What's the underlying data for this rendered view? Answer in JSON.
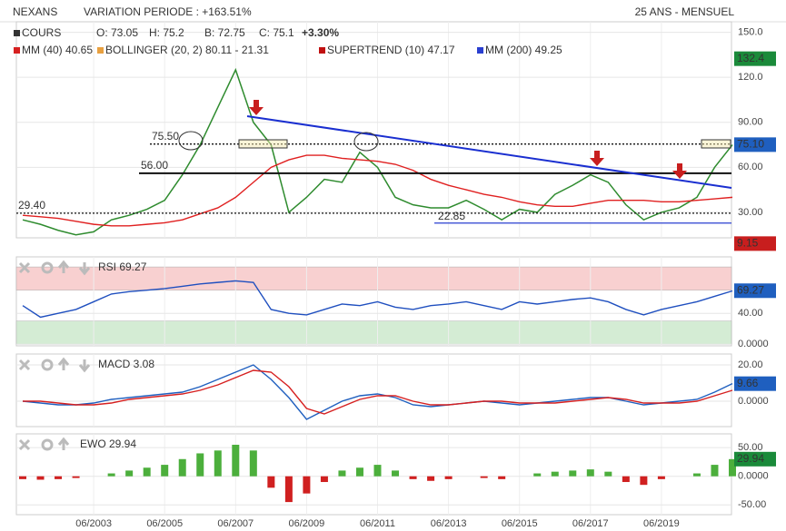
{
  "chart_data": [
    {
      "type": "line",
      "title": "NEXANS",
      "subtitle": "VARIATION PERIODE : +163.51%",
      "period": "25 ANS - MENSUEL",
      "legend": [
        {
          "label": "COURS",
          "color": "#333333"
        },
        {
          "label": "O: 73.05",
          "color": "#333333"
        },
        {
          "label": "H: 75.2",
          "color": "#333333"
        },
        {
          "label": "B: 72.75",
          "color": "#333333"
        },
        {
          "label": "C: 75.1",
          "color": "#333333"
        },
        {
          "label": "+3.30%",
          "color": "#1a9a1a"
        },
        {
          "label": "MM (40) 40.65",
          "color": "#d62020"
        },
        {
          "label": "BOLLINGER (20, 2) 80.11 - 21.31",
          "color": "#e8a040"
        },
        {
          "label": "SUPERTREND (10) 47.17",
          "color": "#c01010"
        },
        {
          "label": "MM (200) 49.25",
          "color": "#2a3fd0"
        }
      ],
      "x": [
        "06/2001",
        "12/2001",
        "06/2002",
        "12/2002",
        "06/2003",
        "12/2003",
        "06/2004",
        "12/2004",
        "06/2005",
        "12/2005",
        "06/2006",
        "12/2006",
        "06/2007",
        "12/2007",
        "06/2008",
        "12/2008",
        "06/2009",
        "12/2009",
        "06/2010",
        "12/2010",
        "06/2011",
        "12/2011",
        "06/2012",
        "12/2012",
        "06/2013",
        "12/2013",
        "06/2014",
        "12/2014",
        "06/2015",
        "12/2015",
        "06/2016",
        "12/2016",
        "06/2017",
        "12/2017",
        "06/2018",
        "12/2018",
        "06/2019",
        "12/2019",
        "06/2020",
        "12/2020",
        "06/2021"
      ],
      "xticks": [
        "06/2003",
        "06/2005",
        "06/2007",
        "06/2009",
        "06/2011",
        "06/2013",
        "06/2015",
        "06/2017",
        "06/2019"
      ],
      "series": [
        {
          "name": "COURS",
          "color": "#2e8b2e",
          "values": [
            25,
            22,
            18,
            15,
            17,
            25,
            28,
            32,
            38,
            55,
            75,
            100,
            125,
            90,
            75,
            30,
            40,
            52,
            50,
            70,
            60,
            40,
            35,
            33,
            33,
            38,
            32,
            25,
            32,
            30,
            42,
            48,
            55,
            50,
            35,
            25,
            30,
            33,
            40,
            60,
            75
          ]
        },
        {
          "name": "MM (40)",
          "color": "#e02020",
          "values": [
            28,
            27,
            26,
            24,
            22,
            21,
            21,
            22,
            23,
            25,
            29,
            33,
            40,
            50,
            60,
            65,
            68,
            68,
            66,
            65,
            64,
            62,
            58,
            52,
            48,
            45,
            42,
            40,
            37,
            35,
            34,
            34,
            36,
            38,
            38,
            38,
            37,
            37,
            38,
            39,
            40
          ]
        }
      ],
      "ylim": [
        13,
        157
      ],
      "yticks": [
        {
          "value": 30,
          "label": "30.00"
        },
        {
          "value": 60,
          "label": "60.00"
        },
        {
          "value": 90,
          "label": "90.00"
        },
        {
          "value": 120,
          "label": "120.0"
        },
        {
          "value": 150,
          "label": "150.0"
        }
      ],
      "annotations": [
        {
          "value": 75.5,
          "label": "75.50"
        },
        {
          "value": 56,
          "label": "56.00"
        },
        {
          "value": 29.4,
          "label": "29.40"
        },
        {
          "value": 22.85,
          "label": "22.85"
        }
      ],
      "value_boxes": [
        {
          "value": 132.4,
          "label": "132.4",
          "color": "#1a8a3a"
        },
        {
          "value": 75.1,
          "label": "75.10",
          "color": "#1f5fbf"
        },
        {
          "value": 9.15,
          "label": "9.15",
          "color": "#c81e1e"
        }
      ]
    },
    {
      "type": "line",
      "title": "RSI 69.27",
      "series": [
        {
          "name": "RSI",
          "color": "#1f4fbf",
          "values": [
            50,
            35,
            40,
            45,
            55,
            65,
            68,
            70,
            72,
            75,
            78,
            80,
            82,
            80,
            45,
            40,
            38,
            45,
            52,
            50,
            55,
            48,
            45,
            50,
            52,
            55,
            50,
            45,
            55,
            52,
            55,
            58,
            60,
            55,
            45,
            38,
            45,
            50,
            55,
            62,
            69
          ]
        }
      ],
      "ylim": [
        -2,
        113
      ],
      "yticks": [
        {
          "value": 0,
          "label": "0.0000"
        },
        {
          "value": 40,
          "label": "40.00"
        }
      ],
      "zones": [
        {
          "from": 70,
          "to": 100,
          "color": "#f8d0d0"
        },
        {
          "from": 0,
          "to": 30,
          "color": "#d4ecd4"
        }
      ],
      "value_boxes": [
        {
          "value": 69.27,
          "label": "69.27",
          "color": "#1f5fbf"
        }
      ]
    },
    {
      "type": "line",
      "title": "MACD 3.08",
      "series": [
        {
          "name": "MACD",
          "color": "#1f5fbf",
          "values": [
            0,
            -1,
            -2,
            -2,
            -1,
            1,
            2,
            3,
            4,
            5,
            8,
            12,
            16,
            20,
            12,
            2,
            -10,
            -5,
            0,
            3,
            4,
            2,
            -2,
            -3,
            -2,
            -1,
            0,
            -1,
            -2,
            -1,
            0,
            1,
            2,
            2,
            0,
            -2,
            -1,
            0,
            1,
            5,
            9.66
          ]
        },
        {
          "name": "SIGNAL",
          "color": "#d62020",
          "values": [
            0,
            0,
            -1,
            -2,
            -2,
            -1,
            1,
            2,
            3,
            4,
            6,
            9,
            13,
            17,
            16,
            8,
            -4,
            -7,
            -3,
            1,
            3,
            3,
            0,
            -2,
            -2,
            -1,
            0,
            0,
            -1,
            -1,
            -1,
            0,
            1,
            2,
            1,
            -1,
            -1,
            -1,
            0,
            3,
            6
          ]
        }
      ],
      "ylim": [
        -14,
        26
      ],
      "yticks": [
        {
          "value": 0,
          "label": "0.0000"
        },
        {
          "value": 20,
          "label": "20.00"
        }
      ],
      "value_boxes": [
        {
          "value": 9.66,
          "label": "9.66",
          "color": "#1f5fbf"
        }
      ]
    },
    {
      "type": "bar",
      "title": "EWO 29.94",
      "values": [
        -5,
        -6,
        -5,
        -3,
        0,
        5,
        10,
        15,
        20,
        30,
        40,
        45,
        55,
        45,
        -20,
        -45,
        -30,
        -10,
        10,
        15,
        20,
        10,
        -5,
        -8,
        -5,
        0,
        -3,
        -5,
        0,
        5,
        8,
        10,
        12,
        8,
        -10,
        -15,
        -5,
        0,
        5,
        20,
        29.94
      ],
      "colors": {
        "positive": "#4caf3c",
        "negative": "#d02020"
      },
      "ylim": [
        -67,
        74
      ],
      "yticks": [
        {
          "value": -50,
          "label": "-50.00"
        },
        {
          "value": 0,
          "label": "0.0000"
        },
        {
          "value": 50,
          "label": "50.00"
        }
      ],
      "value_boxes": [
        {
          "value": 29.94,
          "label": "29.94",
          "color": "#1a8a3a"
        }
      ]
    }
  ]
}
